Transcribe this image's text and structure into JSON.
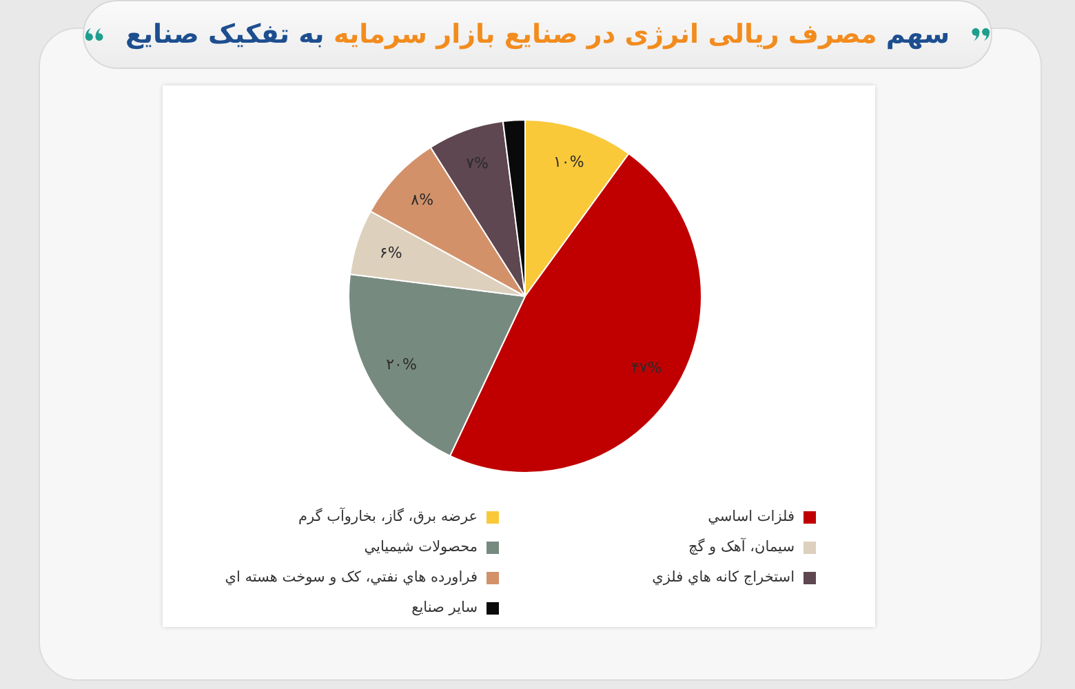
{
  "chart_data": {
    "type": "pie",
    "title": "سهم مصرف ریالی انرژی در صنایع بازار سرمایه به تفکیک صنایع",
    "categories": [
      "عرضه برق، گاز، بخاروآب گرم",
      "فلزات اساسي",
      "محصولات شيميايي",
      "سيمان، آهک و گچ",
      "فراورده هاي نفتي، کک و سوخت هسته اي",
      "استخراج کانه هاي فلزي",
      "ساير صنايع"
    ],
    "values": [
      10,
      47,
      20,
      6,
      8,
      7,
      2
    ],
    "colors": [
      "#f9c93a",
      "#c00000",
      "#778a80",
      "#ddd0bd",
      "#d3916a",
      "#5e4750",
      "#0a0a0a"
    ],
    "value_labels": [
      "۱۰%",
      "۴۷%",
      "۲۰%",
      "۶%",
      "۸%",
      "۷%",
      null
    ],
    "legend": "bottom"
  }
}
